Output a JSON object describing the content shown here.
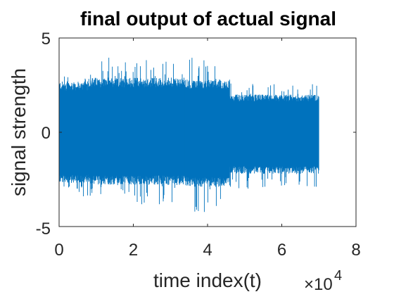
{
  "chart_data": {
    "type": "line",
    "title": "final output of actual signal",
    "xlabel": "time index(t)",
    "ylabel": "signal strength",
    "x_exponent_base": "×10",
    "x_exponent": "4",
    "xlim": [
      0,
      80000
    ],
    "ylim": [
      -5,
      5
    ],
    "x_ticks": [
      0,
      20000,
      40000,
      60000,
      80000
    ],
    "x_tick_labels": [
      "0",
      "2",
      "4",
      "6",
      "8"
    ],
    "y_ticks": [
      -5,
      0,
      5
    ],
    "y_tick_labels": [
      "-5",
      "0",
      "5"
    ],
    "grid": false,
    "series_color": "#0072BD",
    "series": [
      {
        "x_start": 0,
        "x_end": 70000,
        "segments": [
          {
            "x_start": 0,
            "x_end": 8000,
            "typical_min": -2.7,
            "typical_max": 2.7,
            "peak_min": -3.4,
            "peak_max": 3.6
          },
          {
            "x_start": 8000,
            "x_end": 20000,
            "typical_min": -2.8,
            "typical_max": 2.9,
            "peak_min": -3.6,
            "peak_max": 4.0
          },
          {
            "x_start": 20000,
            "x_end": 34000,
            "typical_min": -2.8,
            "typical_max": 2.9,
            "peak_min": -3.9,
            "peak_max": 3.9
          },
          {
            "x_start": 34000,
            "x_end": 46000,
            "typical_min": -2.9,
            "typical_max": 2.8,
            "peak_min": -4.3,
            "peak_max": 4.2
          },
          {
            "x_start": 46000,
            "x_end": 70000,
            "typical_min": -2.2,
            "typical_max": 2.0,
            "peak_min": -3.0,
            "peak_max": 2.6
          }
        ]
      }
    ]
  }
}
